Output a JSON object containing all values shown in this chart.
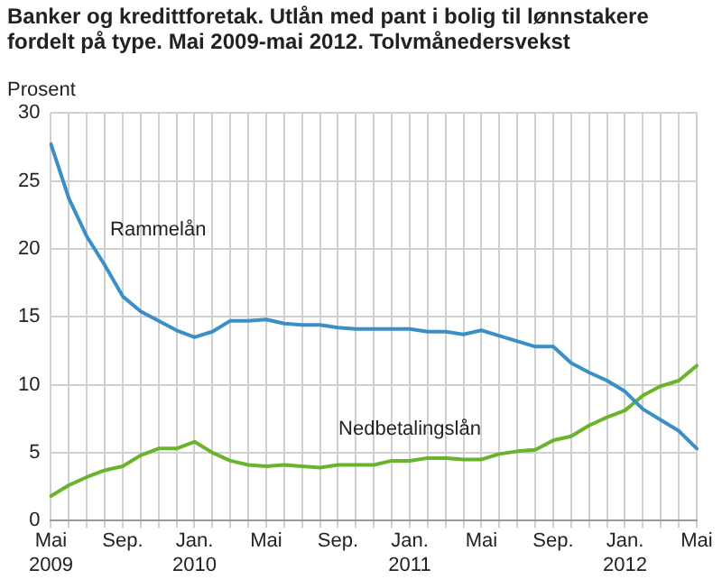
{
  "chart_data": {
    "type": "line",
    "title": "Banker og kredittforetak. Utlån med pant i bolig til lønnstakere fordelt på type. Mai 2009-mai 2012. Tolvmånedersvekst",
    "ylabel": "Prosent",
    "categories": [
      "Mai\n2009",
      null,
      null,
      null,
      "Sep.",
      null,
      null,
      null,
      "Jan.\n2010",
      null,
      null,
      null,
      "Mai",
      null,
      null,
      null,
      "Sep.",
      null,
      null,
      null,
      "Jan.\n2011",
      null,
      null,
      null,
      "Mai",
      null,
      null,
      null,
      "Sep.",
      null,
      null,
      null,
      "Jan.\n2012",
      null,
      null,
      null,
      "Mai"
    ],
    "series": [
      {
        "name": "Rammelån",
        "color": "#3a8fc6",
        "values": [
          27.7,
          23.7,
          20.9,
          18.8,
          16.5,
          15.4,
          14.7,
          14.0,
          13.5,
          13.9,
          14.7,
          14.7,
          14.8,
          14.5,
          14.4,
          14.4,
          14.2,
          14.1,
          14.1,
          14.1,
          14.1,
          13.9,
          13.9,
          13.7,
          14.0,
          13.6,
          13.2,
          12.8,
          12.8,
          11.6,
          10.9,
          10.3,
          9.5,
          8.2,
          7.4,
          6.6,
          5.3
        ]
      },
      {
        "name": "Nedbetalingslån",
        "color": "#6ab42d",
        "values": [
          1.8,
          2.6,
          3.2,
          3.7,
          4.0,
          4.8,
          5.3,
          5.3,
          5.8,
          5.0,
          4.4,
          4.1,
          4.0,
          4.1,
          4.0,
          3.9,
          4.1,
          4.1,
          4.1,
          4.4,
          4.4,
          4.6,
          4.6,
          4.5,
          4.5,
          4.9,
          5.1,
          5.2,
          5.9,
          6.2,
          7.0,
          7.6,
          8.1,
          9.2,
          9.9,
          10.3,
          11.4
        ]
      }
    ],
    "ylim": [
      0,
      30
    ],
    "yticks": [
      0,
      5,
      10,
      15,
      20,
      25,
      30
    ],
    "grid": true,
    "legend": false,
    "marker": "none",
    "line_style": "solid"
  }
}
